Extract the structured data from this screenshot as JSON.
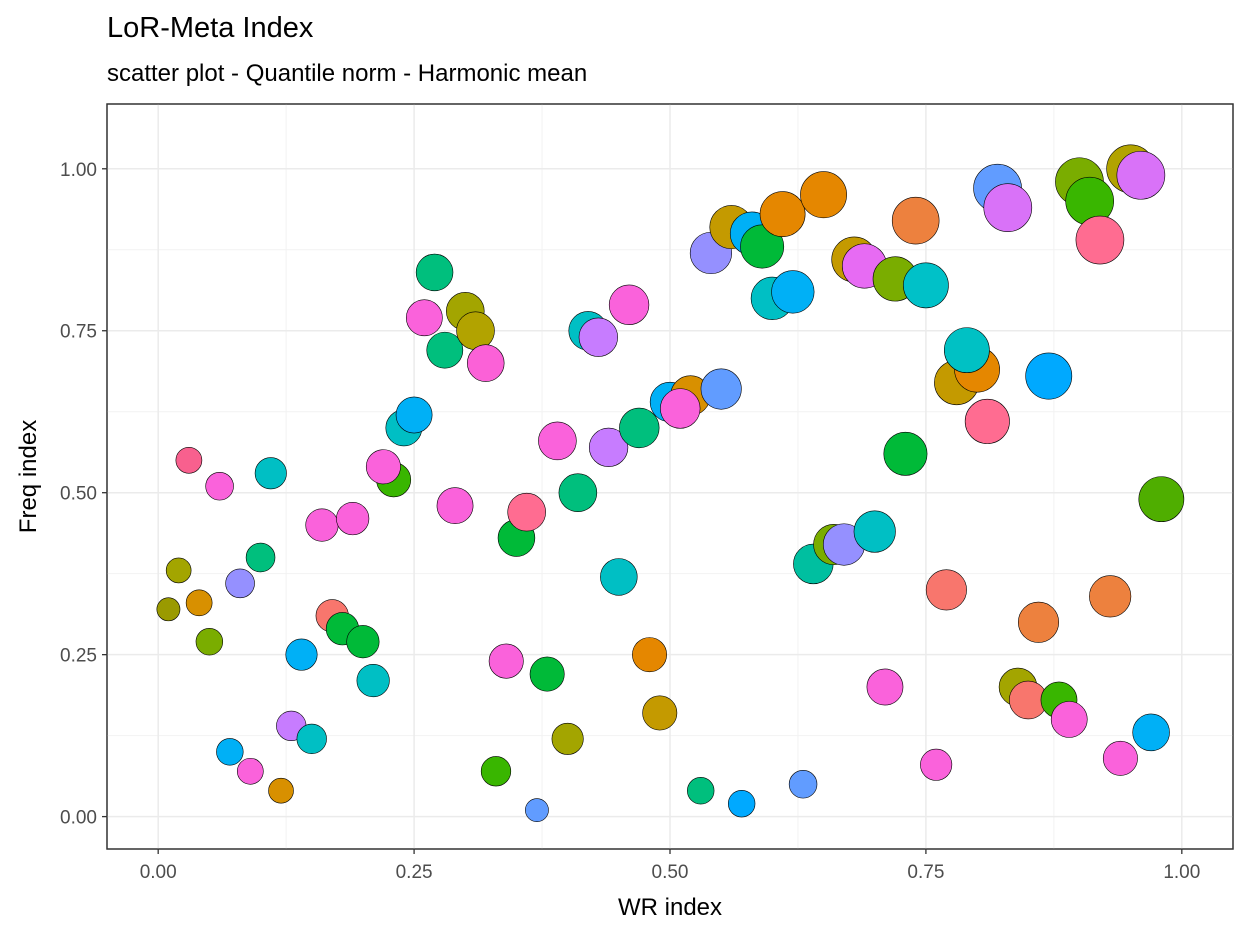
{
  "chart_data": {
    "type": "scatter",
    "title": "LoR-Meta Index",
    "subtitle": "scatter plot - Quantile norm - Harmonic mean",
    "xlabel": "WR index",
    "ylabel": "Freq index",
    "xlim": [
      -0.05,
      1.05
    ],
    "ylim": [
      -0.05,
      1.1
    ],
    "x_ticks": [
      0.0,
      0.25,
      0.5,
      0.75,
      1.0
    ],
    "x_tick_labels": [
      "0.00",
      "0.25",
      "0.50",
      "0.75",
      "1.00"
    ],
    "y_ticks": [
      0.0,
      0.25,
      0.5,
      0.75,
      1.0
    ],
    "y_tick_labels": [
      "0.00",
      "0.25",
      "0.50",
      "0.75",
      "1.00"
    ],
    "grid": true,
    "legend": "none",
    "points": [
      {
        "x": 0.01,
        "y": 0.32,
        "size": 0.31,
        "color": "#9a9a00"
      },
      {
        "x": 0.02,
        "y": 0.38,
        "size": 0.36,
        "color": "#a3a500"
      },
      {
        "x": 0.03,
        "y": 0.55,
        "size": 0.39,
        "color": "#f8608e"
      },
      {
        "x": 0.04,
        "y": 0.33,
        "size": 0.39,
        "color": "#d89000"
      },
      {
        "x": 0.05,
        "y": 0.27,
        "size": 0.41,
        "color": "#7aad00"
      },
      {
        "x": 0.06,
        "y": 0.51,
        "size": 0.44,
        "color": "#fa62db"
      },
      {
        "x": 0.07,
        "y": 0.1,
        "size": 0.41,
        "color": "#00b0f6"
      },
      {
        "x": 0.08,
        "y": 0.36,
        "size": 0.47,
        "color": "#9590ff"
      },
      {
        "x": 0.09,
        "y": 0.07,
        "size": 0.39,
        "color": "#fa62db"
      },
      {
        "x": 0.1,
        "y": 0.4,
        "size": 0.47,
        "color": "#00bf7d"
      },
      {
        "x": 0.11,
        "y": 0.53,
        "size": 0.54,
        "color": "#00bfc4"
      },
      {
        "x": 0.12,
        "y": 0.04,
        "size": 0.36,
        "color": "#d89000"
      },
      {
        "x": 0.13,
        "y": 0.14,
        "size": 0.49,
        "color": "#c77cff"
      },
      {
        "x": 0.14,
        "y": 0.25,
        "size": 0.54,
        "color": "#00b0f6"
      },
      {
        "x": 0.15,
        "y": 0.12,
        "size": 0.49,
        "color": "#00bfc4"
      },
      {
        "x": 0.16,
        "y": 0.45,
        "size": 0.57,
        "color": "#fa62db"
      },
      {
        "x": 0.17,
        "y": 0.31,
        "size": 0.57,
        "color": "#f8766d"
      },
      {
        "x": 0.18,
        "y": 0.29,
        "size": 0.57,
        "color": "#00ba38"
      },
      {
        "x": 0.19,
        "y": 0.46,
        "size": 0.57,
        "color": "#fa62db"
      },
      {
        "x": 0.2,
        "y": 0.27,
        "size": 0.57,
        "color": "#00ba38"
      },
      {
        "x": 0.21,
        "y": 0.21,
        "size": 0.57,
        "color": "#00bfc4"
      },
      {
        "x": 0.23,
        "y": 0.52,
        "size": 0.62,
        "color": "#39b600"
      },
      {
        "x": 0.22,
        "y": 0.54,
        "size": 0.62,
        "color": "#fa62db"
      },
      {
        "x": 0.24,
        "y": 0.6,
        "size": 0.67,
        "color": "#00bfc4"
      },
      {
        "x": 0.25,
        "y": 0.62,
        "size": 0.67,
        "color": "#00b0f6"
      },
      {
        "x": 0.26,
        "y": 0.77,
        "size": 0.67,
        "color": "#fa62db"
      },
      {
        "x": 0.27,
        "y": 0.84,
        "size": 0.69,
        "color": "#00bf7d"
      },
      {
        "x": 0.28,
        "y": 0.72,
        "size": 0.67,
        "color": "#00bf7d"
      },
      {
        "x": 0.29,
        "y": 0.48,
        "size": 0.67,
        "color": "#fa62db"
      },
      {
        "x": 0.3,
        "y": 0.78,
        "size": 0.72,
        "color": "#a3a500"
      },
      {
        "x": 0.31,
        "y": 0.75,
        "size": 0.72,
        "color": "#b2a300"
      },
      {
        "x": 0.32,
        "y": 0.7,
        "size": 0.69,
        "color": "#fb61d7"
      },
      {
        "x": 0.33,
        "y": 0.07,
        "size": 0.49,
        "color": "#39b600"
      },
      {
        "x": 0.34,
        "y": 0.24,
        "size": 0.62,
        "color": "#fa62db"
      },
      {
        "x": 0.35,
        "y": 0.43,
        "size": 0.69,
        "color": "#00ba38"
      },
      {
        "x": 0.36,
        "y": 0.47,
        "size": 0.72,
        "color": "#ff6c91"
      },
      {
        "x": 0.37,
        "y": 0.01,
        "size": 0.31,
        "color": "#619cff"
      },
      {
        "x": 0.38,
        "y": 0.22,
        "size": 0.62,
        "color": "#00ba38"
      },
      {
        "x": 0.39,
        "y": 0.58,
        "size": 0.72,
        "color": "#fa62db"
      },
      {
        "x": 0.4,
        "y": 0.12,
        "size": 0.54,
        "color": "#a3a500"
      },
      {
        "x": 0.41,
        "y": 0.5,
        "size": 0.72,
        "color": "#00bf7d"
      },
      {
        "x": 0.42,
        "y": 0.75,
        "size": 0.74,
        "color": "#00bfc4"
      },
      {
        "x": 0.43,
        "y": 0.74,
        "size": 0.74,
        "color": "#c77cff"
      },
      {
        "x": 0.44,
        "y": 0.57,
        "size": 0.74,
        "color": "#c77cff"
      },
      {
        "x": 0.45,
        "y": 0.37,
        "size": 0.69,
        "color": "#00bfc4"
      },
      {
        "x": 0.46,
        "y": 0.79,
        "size": 0.77,
        "color": "#fa62db"
      },
      {
        "x": 0.47,
        "y": 0.6,
        "size": 0.77,
        "color": "#00bf7d"
      },
      {
        "x": 0.48,
        "y": 0.25,
        "size": 0.62,
        "color": "#e58700"
      },
      {
        "x": 0.49,
        "y": 0.16,
        "size": 0.62,
        "color": "#c49a00"
      },
      {
        "x": 0.5,
        "y": 0.64,
        "size": 0.77,
        "color": "#00b0f6"
      },
      {
        "x": 0.52,
        "y": 0.65,
        "size": 0.77,
        "color": "#d89000"
      },
      {
        "x": 0.51,
        "y": 0.63,
        "size": 0.77,
        "color": "#fa62db"
      },
      {
        "x": 0.53,
        "y": 0.04,
        "size": 0.41,
        "color": "#00bf7d"
      },
      {
        "x": 0.54,
        "y": 0.87,
        "size": 0.82,
        "color": "#9590ff"
      },
      {
        "x": 0.55,
        "y": 0.66,
        "size": 0.79,
        "color": "#619cff"
      },
      {
        "x": 0.56,
        "y": 0.91,
        "size": 0.87,
        "color": "#c49a00"
      },
      {
        "x": 0.57,
        "y": 0.02,
        "size": 0.41,
        "color": "#00a9ff"
      },
      {
        "x": 0.58,
        "y": 0.9,
        "size": 0.87,
        "color": "#00b0f6"
      },
      {
        "x": 0.59,
        "y": 0.88,
        "size": 0.87,
        "color": "#00ba38"
      },
      {
        "x": 0.6,
        "y": 0.8,
        "size": 0.85,
        "color": "#00bfc4"
      },
      {
        "x": 0.61,
        "y": 0.93,
        "size": 0.92,
        "color": "#e58700"
      },
      {
        "x": 0.62,
        "y": 0.81,
        "size": 0.85,
        "color": "#00b0f6"
      },
      {
        "x": 0.63,
        "y": 0.05,
        "size": 0.44,
        "color": "#619cff"
      },
      {
        "x": 0.64,
        "y": 0.39,
        "size": 0.77,
        "color": "#00bfa0"
      },
      {
        "x": 0.65,
        "y": 0.96,
        "size": 0.95,
        "color": "#e58700"
      },
      {
        "x": 0.66,
        "y": 0.42,
        "size": 0.79,
        "color": "#7aad00"
      },
      {
        "x": 0.67,
        "y": 0.42,
        "size": 0.82,
        "color": "#9590ff"
      },
      {
        "x": 0.68,
        "y": 0.86,
        "size": 0.92,
        "color": "#c49a00"
      },
      {
        "x": 0.69,
        "y": 0.85,
        "size": 0.9,
        "color": "#e76bf3"
      },
      {
        "x": 0.7,
        "y": 0.44,
        "size": 0.82,
        "color": "#00bfc4"
      },
      {
        "x": 0.71,
        "y": 0.2,
        "size": 0.67,
        "color": "#fa62db"
      },
      {
        "x": 0.72,
        "y": 0.83,
        "size": 0.9,
        "color": "#7aad00"
      },
      {
        "x": 0.73,
        "y": 0.56,
        "size": 0.87,
        "color": "#00ba38"
      },
      {
        "x": 0.74,
        "y": 0.92,
        "size": 0.97,
        "color": "#ed813e"
      },
      {
        "x": 0.75,
        "y": 0.82,
        "size": 0.92,
        "color": "#00c1c8"
      },
      {
        "x": 0.76,
        "y": 0.08,
        "size": 0.54,
        "color": "#fa62db"
      },
      {
        "x": 0.77,
        "y": 0.35,
        "size": 0.79,
        "color": "#f8766d"
      },
      {
        "x": 0.78,
        "y": 0.67,
        "size": 0.9,
        "color": "#c49a00"
      },
      {
        "x": 0.8,
        "y": 0.69,
        "size": 0.92,
        "color": "#e58700"
      },
      {
        "x": 0.79,
        "y": 0.72,
        "size": 0.92,
        "color": "#00c1c4"
      },
      {
        "x": 0.81,
        "y": 0.61,
        "size": 0.9,
        "color": "#ff6c91"
      },
      {
        "x": 0.82,
        "y": 0.97,
        "size": 1.0,
        "color": "#619cff"
      },
      {
        "x": 0.83,
        "y": 0.94,
        "size": 1.0,
        "color": "#d972f8"
      },
      {
        "x": 0.84,
        "y": 0.2,
        "size": 0.72,
        "color": "#a3a500"
      },
      {
        "x": 0.85,
        "y": 0.18,
        "size": 0.72,
        "color": "#f8766d"
      },
      {
        "x": 0.86,
        "y": 0.3,
        "size": 0.79,
        "color": "#ed813e"
      },
      {
        "x": 0.87,
        "y": 0.68,
        "size": 0.95,
        "color": "#00a9ff"
      },
      {
        "x": 0.88,
        "y": 0.18,
        "size": 0.67,
        "color": "#39b600"
      },
      {
        "x": 0.89,
        "y": 0.15,
        "size": 0.67,
        "color": "#fa62db"
      },
      {
        "x": 0.9,
        "y": 0.98,
        "size": 1.0,
        "color": "#7aad00"
      },
      {
        "x": 0.91,
        "y": 0.95,
        "size": 1.0,
        "color": "#39b600"
      },
      {
        "x": 0.92,
        "y": 0.89,
        "size": 1.0,
        "color": "#ff6c91"
      },
      {
        "x": 0.93,
        "y": 0.34,
        "size": 0.82,
        "color": "#ed813e"
      },
      {
        "x": 0.94,
        "y": 0.09,
        "size": 0.62,
        "color": "#fa62db"
      },
      {
        "x": 0.95,
        "y": 1.0,
        "size": 1.0,
        "color": "#b2a300"
      },
      {
        "x": 0.96,
        "y": 0.99,
        "size": 1.0,
        "color": "#d972f8"
      },
      {
        "x": 0.97,
        "y": 0.13,
        "size": 0.69,
        "color": "#00b0f6"
      },
      {
        "x": 0.98,
        "y": 0.49,
        "size": 0.92,
        "color": "#4fae00"
      }
    ]
  }
}
